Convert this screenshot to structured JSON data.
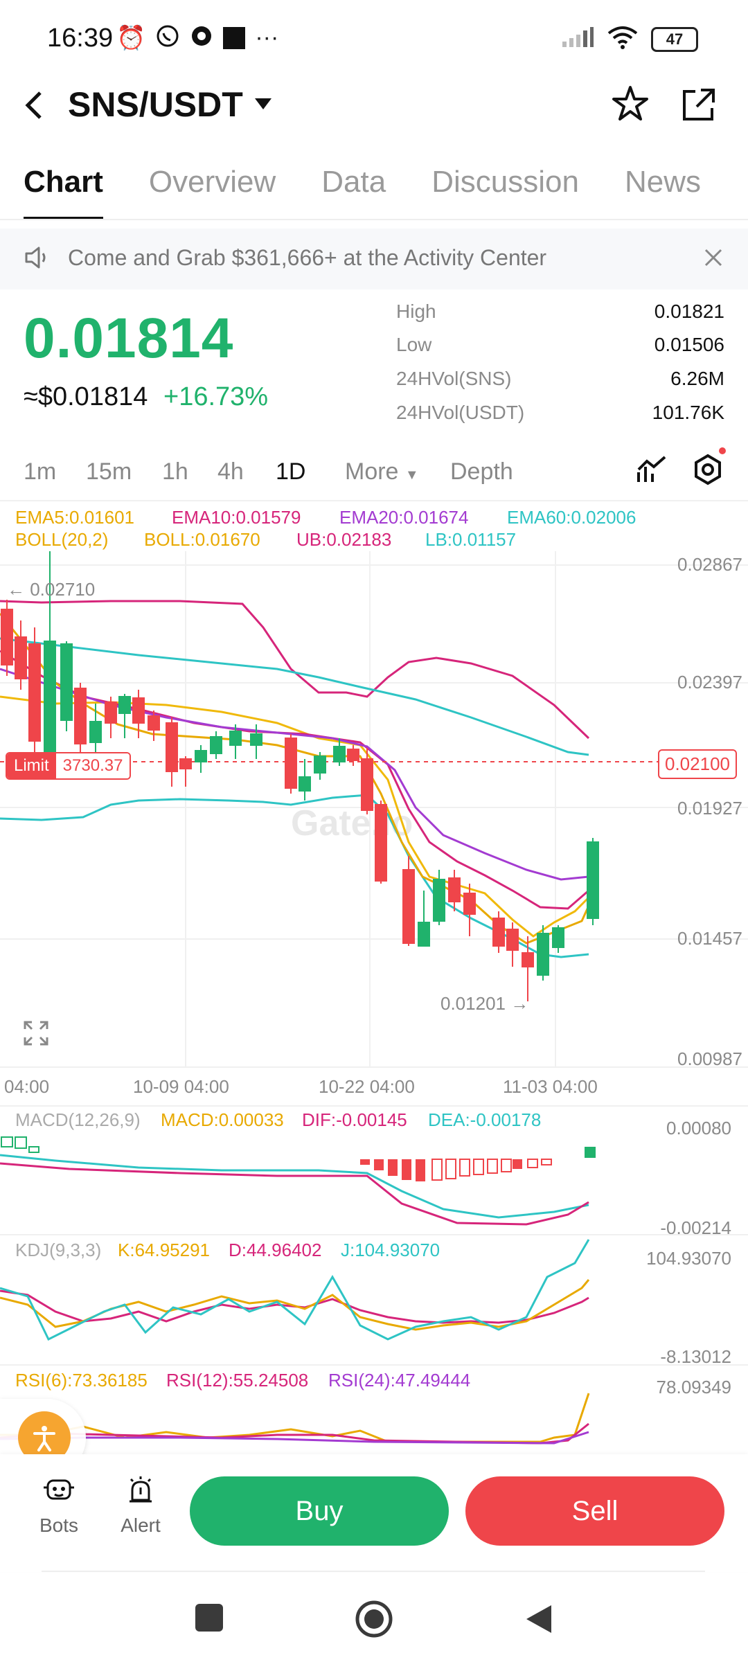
{
  "status_bar": {
    "time": "16:39",
    "battery": "47"
  },
  "header": {
    "pair": "SNS/USDT"
  },
  "tabs": [
    "Chart",
    "Overview",
    "Data",
    "Discussion",
    "News"
  ],
  "banner": {
    "text": "Come and Grab $361,666+ at the Activity Center"
  },
  "price": {
    "last": "0.01814",
    "usd": "≈$0.01814",
    "change": "+16.73%",
    "stats": [
      {
        "label": "High",
        "value": "0.01821"
      },
      {
        "label": "Low",
        "value": "0.01506"
      },
      {
        "label": "24HVol(SNS)",
        "value": "6.26M"
      },
      {
        "label": "24HVol(USDT)",
        "value": "101.76K"
      }
    ]
  },
  "timeframes": [
    "1m",
    "15m",
    "1h",
    "4h",
    "1D",
    "More",
    "Depth"
  ],
  "active_timeframe": "1D",
  "indicators": {
    "ema5": "EMA5:0.01601",
    "ema10": "EMA10:0.01579",
    "ema20": "EMA20:0.01674",
    "ema60": "EMA60:0.02006",
    "boll": "BOLL(20,2)",
    "boll_mid": "BOLL:0.01670",
    "ub": "UB:0.02183",
    "lb": "LB:0.01157"
  },
  "chart": {
    "y_ticks": [
      "0.02867",
      "0.02397",
      "0.01927",
      "0.01457",
      "0.00987"
    ],
    "x_ticks": [
      "04:00",
      "10-09 04:00",
      "10-22 04:00",
      "11-03 04:00"
    ],
    "high_marker": "← 0.02710",
    "low_marker": "0.01201 →",
    "limit_label": "Limit",
    "limit_qty": "3730.37",
    "limit_price": "0.02100",
    "watermark": "Gate.io"
  },
  "macd": {
    "label": "MACD(12,26,9)",
    "macd": "MACD:0.00033",
    "dif": "DIF:-0.00145",
    "dea": "DEA:-0.00178",
    "top": "0.00080",
    "bottom": "-0.00214"
  },
  "kdj": {
    "label": "KDJ(9,3,3)",
    "k": "K:64.95291",
    "d": "D:44.96402",
    "j": "J:104.93070",
    "top": "104.93070",
    "bottom": "-8.13012"
  },
  "rsi": {
    "rsi6": "RSI(6):73.36185",
    "rsi12": "RSI(12):55.24508",
    "rsi24": "RSI(24):47.49444",
    "top": "78.09349"
  },
  "bottom": {
    "bots": "Bots",
    "alert": "Alert",
    "buy": "Buy",
    "sell": "Sell"
  },
  "colors": {
    "up": "#20b26c",
    "down": "#ef454a",
    "ema5": "#f0b90b",
    "ema10": "#d6257a",
    "ema20": "#a33bd1",
    "ema60": "#2ec4c4"
  }
}
